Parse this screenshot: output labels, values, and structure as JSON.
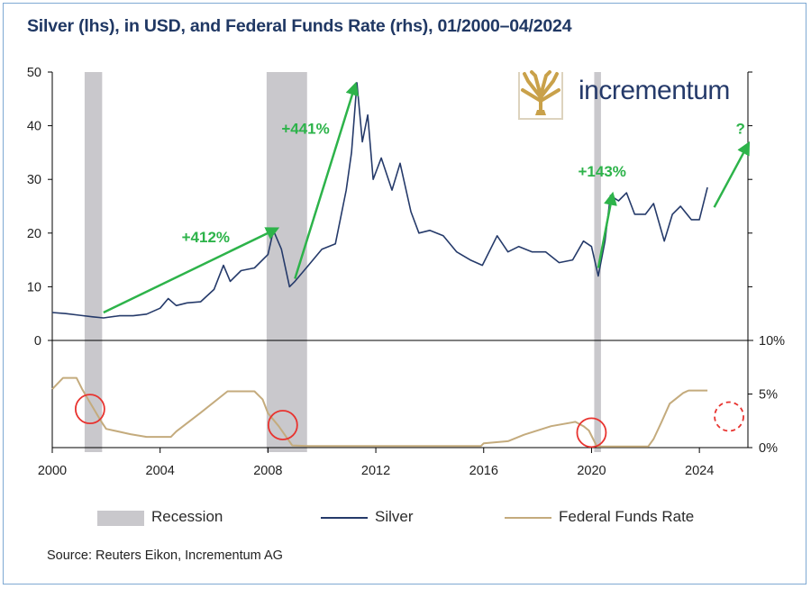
{
  "chart_data": {
    "type": "line",
    "title": "Silver (lhs), in USD, and Federal Funds Rate (rhs), 01/2000–04/2024",
    "source": "Source: Reuters Eikon, Incrementum AG",
    "logo_text": "incrementum",
    "x_ticks": [
      "2000",
      "2004",
      "2008",
      "2012",
      "2016",
      "2020",
      "2024"
    ],
    "panels": [
      {
        "name": "upper",
        "ylim": [
          0,
          50
        ],
        "left_ticks": [
          "0",
          "10",
          "20",
          "30",
          "40",
          "50"
        ]
      },
      {
        "name": "lower",
        "ylim": [
          0,
          10
        ],
        "right_ticks": [
          "0%",
          "5%",
          "10%"
        ]
      }
    ],
    "recessions": [
      {
        "start": 2001.2,
        "end": 2001.85
      },
      {
        "start": 2007.95,
        "end": 2009.45
      },
      {
        "start": 2020.1,
        "end": 2020.35
      }
    ],
    "series": [
      {
        "name": "Silver",
        "color": "#253a6a",
        "axis": "left",
        "points": [
          [
            2000.0,
            5.2
          ],
          [
            2000.5,
            5.0
          ],
          [
            2001.0,
            4.7
          ],
          [
            2001.5,
            4.4
          ],
          [
            2001.9,
            4.2
          ],
          [
            2002.5,
            4.6
          ],
          [
            2003.0,
            4.6
          ],
          [
            2003.5,
            4.9
          ],
          [
            2004.0,
            6.0
          ],
          [
            2004.3,
            7.8
          ],
          [
            2004.6,
            6.5
          ],
          [
            2005.0,
            7.0
          ],
          [
            2005.5,
            7.2
          ],
          [
            2006.0,
            9.5
          ],
          [
            2006.35,
            14.0
          ],
          [
            2006.6,
            11.0
          ],
          [
            2007.0,
            13.0
          ],
          [
            2007.5,
            13.5
          ],
          [
            2008.0,
            16.0
          ],
          [
            2008.2,
            20.5
          ],
          [
            2008.5,
            17.0
          ],
          [
            2008.8,
            10.0
          ],
          [
            2009.0,
            11.0
          ],
          [
            2009.5,
            14.0
          ],
          [
            2010.0,
            17.0
          ],
          [
            2010.5,
            18.0
          ],
          [
            2010.9,
            28.0
          ],
          [
            2011.1,
            35.0
          ],
          [
            2011.3,
            48.0
          ],
          [
            2011.5,
            37.0
          ],
          [
            2011.7,
            42.0
          ],
          [
            2011.9,
            30.0
          ],
          [
            2012.2,
            34.0
          ],
          [
            2012.6,
            28.0
          ],
          [
            2012.9,
            33.0
          ],
          [
            2013.3,
            24.0
          ],
          [
            2013.6,
            20.0
          ],
          [
            2014.0,
            20.5
          ],
          [
            2014.5,
            19.5
          ],
          [
            2015.0,
            16.5
          ],
          [
            2015.5,
            15.0
          ],
          [
            2015.95,
            14.0
          ],
          [
            2016.5,
            19.5
          ],
          [
            2016.9,
            16.5
          ],
          [
            2017.3,
            17.5
          ],
          [
            2017.8,
            16.5
          ],
          [
            2018.3,
            16.5
          ],
          [
            2018.8,
            14.5
          ],
          [
            2019.3,
            15.0
          ],
          [
            2019.7,
            18.5
          ],
          [
            2020.0,
            17.5
          ],
          [
            2020.25,
            12.0
          ],
          [
            2020.5,
            18.5
          ],
          [
            2020.7,
            27.0
          ],
          [
            2021.0,
            26.0
          ],
          [
            2021.3,
            27.5
          ],
          [
            2021.6,
            23.5
          ],
          [
            2022.0,
            23.5
          ],
          [
            2022.3,
            25.5
          ],
          [
            2022.7,
            18.5
          ],
          [
            2023.0,
            23.5
          ],
          [
            2023.3,
            25.0
          ],
          [
            2023.7,
            22.5
          ],
          [
            2024.0,
            22.5
          ],
          [
            2024.3,
            28.5
          ]
        ]
      },
      {
        "name": "Federal Funds Rate",
        "color": "#c4ab7d",
        "axis": "right",
        "points": [
          [
            2000.0,
            5.45
          ],
          [
            2000.4,
            6.5
          ],
          [
            2000.9,
            6.5
          ],
          [
            2001.1,
            5.5
          ],
          [
            2001.4,
            4.2
          ],
          [
            2001.8,
            2.5
          ],
          [
            2002.0,
            1.75
          ],
          [
            2002.9,
            1.25
          ],
          [
            2003.5,
            1.0
          ],
          [
            2004.4,
            1.0
          ],
          [
            2004.6,
            1.5
          ],
          [
            2005.5,
            3.25
          ],
          [
            2006.5,
            5.25
          ],
          [
            2007.5,
            5.25
          ],
          [
            2007.8,
            4.5
          ],
          [
            2008.0,
            3.2
          ],
          [
            2008.4,
            2.0
          ],
          [
            2008.9,
            0.2
          ],
          [
            2009.5,
            0.15
          ],
          [
            2015.9,
            0.15
          ],
          [
            2016.0,
            0.4
          ],
          [
            2016.9,
            0.6
          ],
          [
            2017.5,
            1.2
          ],
          [
            2018.5,
            2.0
          ],
          [
            2019.4,
            2.4
          ],
          [
            2019.7,
            2.0
          ],
          [
            2019.9,
            1.6
          ],
          [
            2020.2,
            0.1
          ],
          [
            2022.1,
            0.1
          ],
          [
            2022.3,
            0.8
          ],
          [
            2022.6,
            2.4
          ],
          [
            2022.9,
            4.1
          ],
          [
            2023.4,
            5.1
          ],
          [
            2023.6,
            5.33
          ],
          [
            2024.3,
            5.33
          ]
        ]
      }
    ],
    "annotations": [
      "+412%",
      "+441%",
      "+143%",
      "?"
    ],
    "legend": [
      "Recession",
      "Silver",
      "Federal Funds Rate"
    ],
    "colors": {
      "recession": "#c9c8cc",
      "arrow": "#2db34a",
      "circle": "#e8332f",
      "title": "#203864"
    }
  }
}
